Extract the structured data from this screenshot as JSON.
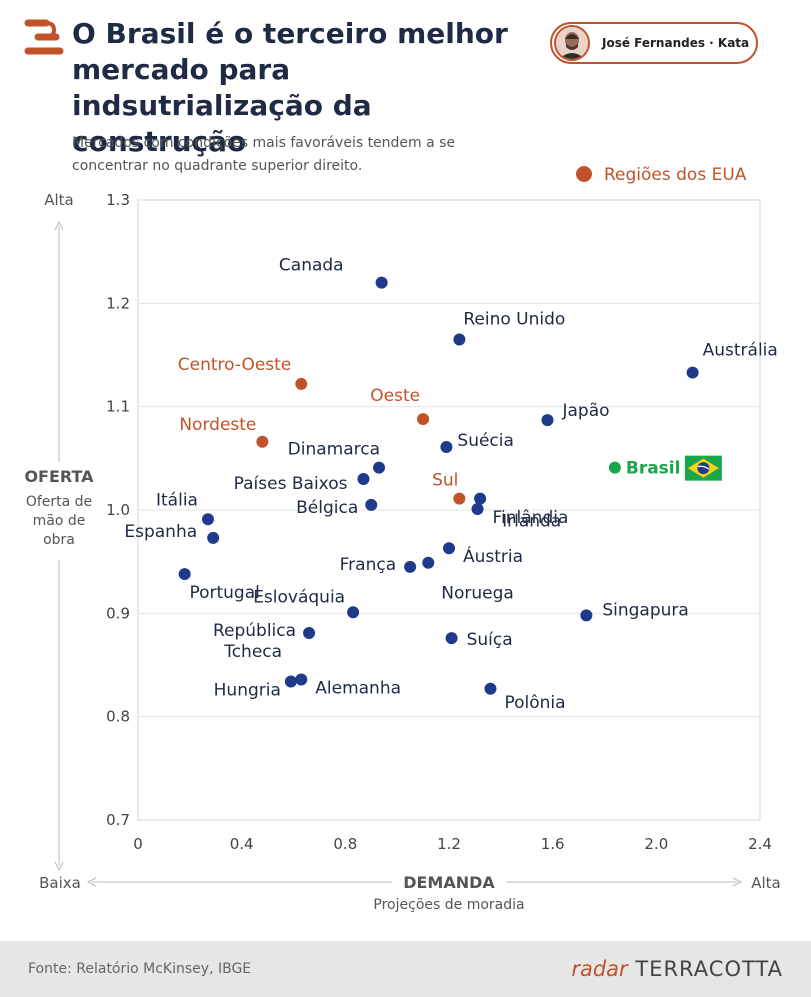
{
  "header": {
    "title": "O Brasil é o terceiro melhor mercado para indsutrialização da construção",
    "subtitle": "Mercados com condições mais favoráveis tendem a se concentrar no quadrante superior direito.",
    "author": "José Fernandes · Kata"
  },
  "colors": {
    "accent": "#c0532a",
    "country": "#1f3a8a",
    "brazil": "#1aa64a",
    "grid": "#e5e5e5"
  },
  "chart_data": {
    "type": "scatter",
    "legend": {
      "label": "Regiões dos EUA",
      "placement": "top-right"
    },
    "xlabel": "DEMANDA",
    "xsublabel": "Projeções de moradia",
    "ylabel": "OFERTA",
    "ysublabel": "Oferta de mão de obra",
    "x_low": "Baixa",
    "x_high": "Alta",
    "y_high": "Alta",
    "xlim": [
      0,
      2.4
    ],
    "ylim": [
      0.7,
      1.3
    ],
    "xticks": [
      "0",
      "0.4",
      "0.8",
      "1.2",
      "1.6",
      "2.0",
      "2.4"
    ],
    "yticks": [
      "0.7",
      "0.8",
      "0.9",
      "1.0",
      "1.1",
      "1.2",
      "1.3"
    ],
    "series": [
      {
        "name": "Países",
        "group": "country",
        "points": [
          {
            "label": "Canada",
            "x": 0.94,
            "y": 1.22
          },
          {
            "label": "Reino Unido",
            "x": 1.24,
            "y": 1.165
          },
          {
            "label": "Austrália",
            "x": 2.14,
            "y": 1.133
          },
          {
            "label": "Japão",
            "x": 1.58,
            "y": 1.087
          },
          {
            "label": "Suécia",
            "x": 1.19,
            "y": 1.061
          },
          {
            "label": "Dinamarca",
            "x": 0.93,
            "y": 1.041
          },
          {
            "label": "Países Baixos",
            "x": 0.87,
            "y": 1.03
          },
          {
            "label": "Bélgica",
            "x": 0.9,
            "y": 1.005
          },
          {
            "label": "Irlanda",
            "x": 1.32,
            "y": 1.011
          },
          {
            "label": "Finlândia",
            "x": 1.31,
            "y": 1.001
          },
          {
            "label": "Itália",
            "x": 0.27,
            "y": 0.991
          },
          {
            "label": "Espanha",
            "x": 0.29,
            "y": 0.973
          },
          {
            "label": "Áustria",
            "x": 1.2,
            "y": 0.963
          },
          {
            "label": "França",
            "x": 1.05,
            "y": 0.945
          },
          {
            "label": "Noruega",
            "x": 1.12,
            "y": 0.949
          },
          {
            "label": "Portugal",
            "x": 0.18,
            "y": 0.938
          },
          {
            "label": "Eslováquia",
            "x": 0.83,
            "y": 0.901
          },
          {
            "label": "Singapura",
            "x": 1.73,
            "y": 0.898
          },
          {
            "label": "República Tcheca",
            "x": 0.66,
            "y": 0.881
          },
          {
            "label": "Suíça",
            "x": 1.21,
            "y": 0.876
          },
          {
            "label": "Hungria",
            "x": 0.59,
            "y": 0.834
          },
          {
            "label": "Alemanha",
            "x": 0.63,
            "y": 0.836
          },
          {
            "label": "Polônia",
            "x": 1.36,
            "y": 0.827
          }
        ]
      },
      {
        "name": "Regiões dos EUA",
        "group": "region",
        "points": [
          {
            "label": "Centro-Oeste",
            "x": 0.63,
            "y": 1.122
          },
          {
            "label": "Oeste",
            "x": 1.1,
            "y": 1.088
          },
          {
            "label": "Nordeste",
            "x": 0.48,
            "y": 1.066
          },
          {
            "label": "Sul",
            "x": 1.24,
            "y": 1.011
          }
        ]
      },
      {
        "name": "Brasil",
        "group": "brazil",
        "points": [
          {
            "label": "Brasil",
            "x": 1.84,
            "y": 1.041
          }
        ]
      }
    ]
  },
  "footer": {
    "source": "Fonte: Relatório McKinsey, IBGE",
    "brand_radar": "radar",
    "brand_company": "TERRACOTTA"
  }
}
